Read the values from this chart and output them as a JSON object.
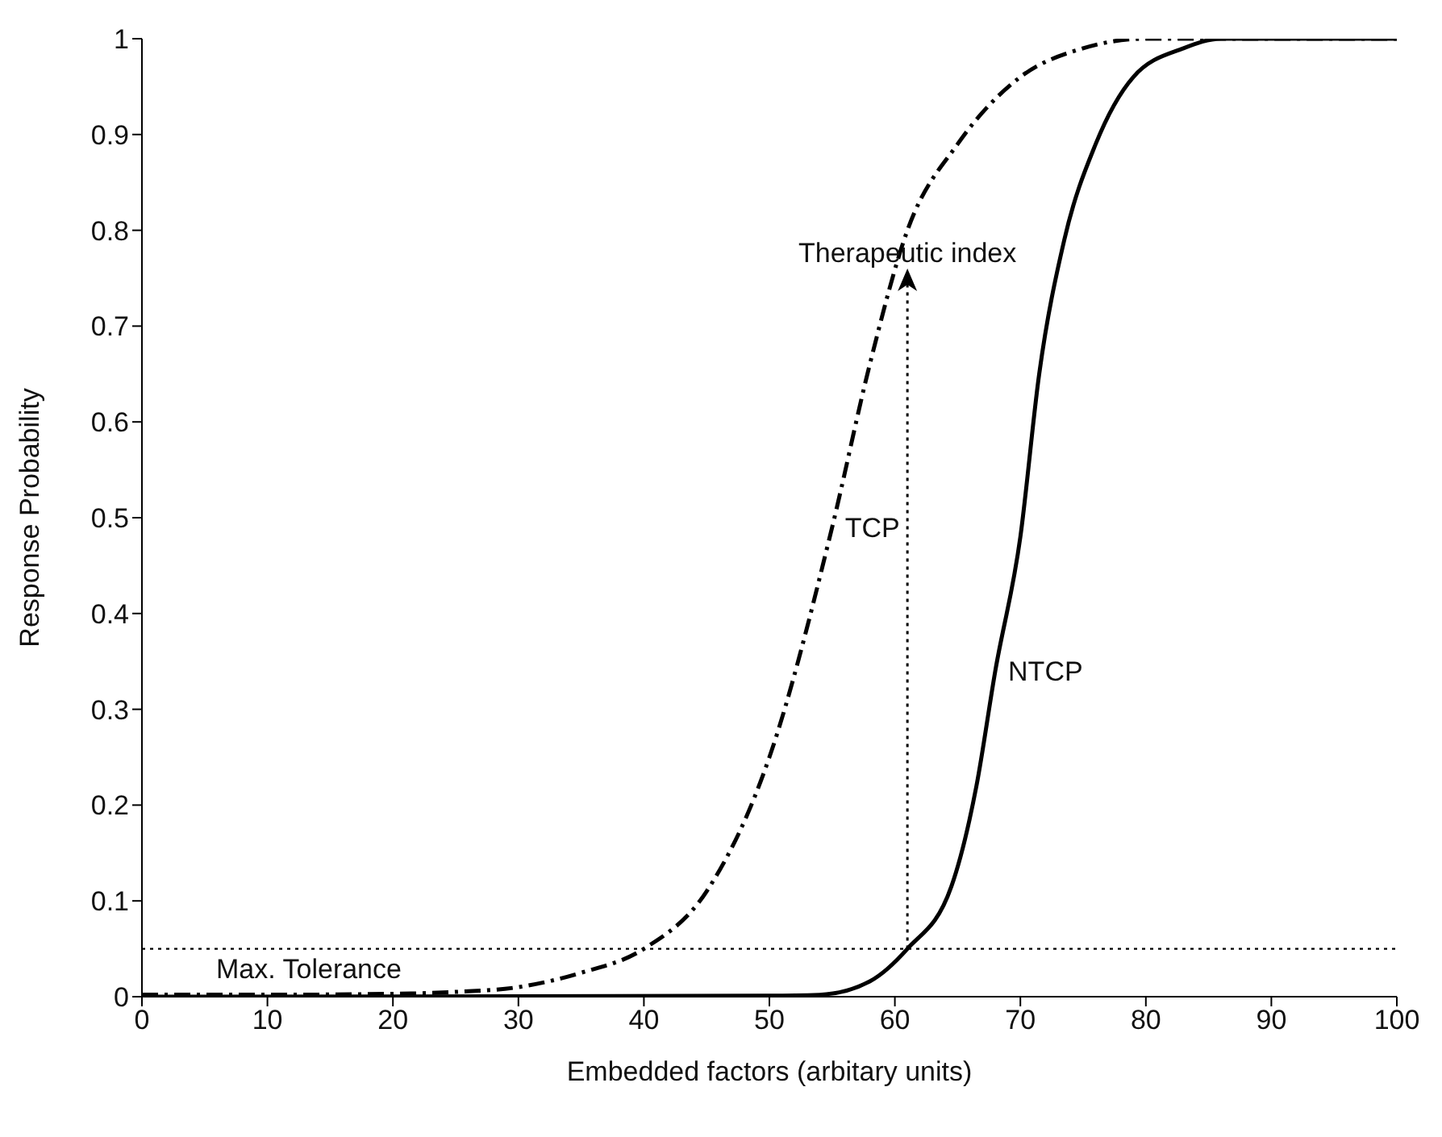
{
  "chart_data": {
    "type": "line",
    "xlabel": "Embedded factors (arbitary units)",
    "ylabel": "Response Probability",
    "xlim": [
      0,
      100
    ],
    "xticks": [
      0,
      10,
      20,
      30,
      40,
      50,
      60,
      70,
      80,
      90,
      100
    ],
    "ylim": [
      0,
      1
    ],
    "yticks": [
      0,
      0.1,
      0.2,
      0.3,
      0.4,
      0.5,
      0.6,
      0.7,
      0.8,
      0.9,
      1
    ],
    "grid": false,
    "legend": false,
    "marker": "none",
    "series": [
      {
        "name": "TCP",
        "color": "#000000",
        "line_style": "dashed",
        "x": [
          0,
          10,
          20,
          25,
          30,
          35,
          40,
          45,
          50,
          55,
          58,
          61,
          65,
          70,
          75,
          80,
          90,
          100
        ],
        "values": [
          0.002,
          0.002,
          0.003,
          0.005,
          0.01,
          0.025,
          0.05,
          0.11,
          0.25,
          0.49,
          0.66,
          0.8,
          0.89,
          0.96,
          0.99,
          1,
          1,
          1
        ]
      },
      {
        "name": "NTCP",
        "color": "#000000",
        "line_style": "solid",
        "x": [
          0,
          50,
          54,
          58,
          61,
          64.5,
          66.5,
          68,
          70,
          71.5,
          73.5,
          76,
          79,
          83,
          86,
          100
        ],
        "values": [
          0,
          0.001,
          0.002,
          0.016,
          0.05,
          0.115,
          0.22,
          0.34,
          0.48,
          0.65,
          0.79,
          0.89,
          0.96,
          0.99,
          1,
          1
        ]
      }
    ],
    "ref_lines": [
      {
        "axis": "y",
        "value": 0.05,
        "label": "Max. Tolerance",
        "color": "#000000",
        "line_style": "dotted"
      }
    ],
    "annotations": [
      "Therapeutic index"
    ]
  }
}
